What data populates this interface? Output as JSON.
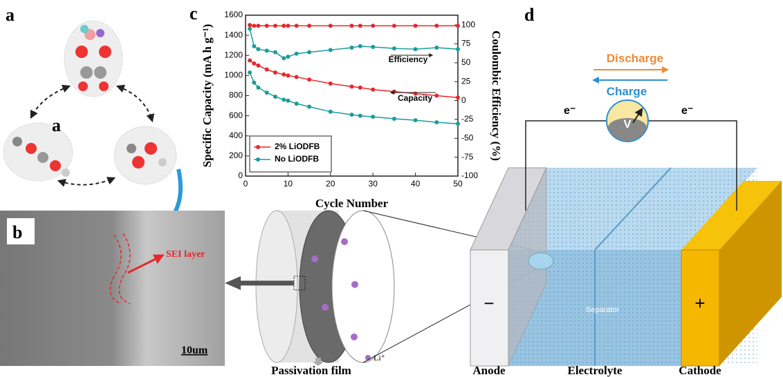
{
  "chart_data": {
    "type": "line",
    "panel_label": "c",
    "x_label": "Cycle Number",
    "y_label": "Specific Capacity (mA h g⁻¹)",
    "y2_label": "Coulombic Efficiency (%)",
    "x": [
      1,
      2,
      3,
      5,
      7,
      9,
      10,
      12,
      15,
      20,
      25,
      27,
      30,
      35,
      40,
      45,
      50
    ],
    "xlim": [
      0,
      50
    ],
    "xticks": [
      0,
      10,
      20,
      30,
      40,
      50
    ],
    "ylim": [
      0,
      1600
    ],
    "yticks": [
      0,
      200,
      400,
      600,
      800,
      1000,
      1200,
      1400,
      1600
    ],
    "y2lim": [
      -100,
      113
    ],
    "y2ticks": [
      -100,
      -75,
      -50,
      -25,
      0,
      25,
      50,
      75,
      100
    ],
    "series": [
      {
        "name": "2% LiODFB",
        "color": "#e8262c",
        "values": [
          1150,
          1120,
          1100,
          1060,
          1030,
          1010,
          1000,
          985,
          960,
          920,
          890,
          880,
          860,
          840,
          820,
          800,
          780
        ]
      },
      {
        "name": "No LiODFB",
        "color": "#1a9c9c",
        "values": [
          1030,
          930,
          880,
          830,
          790,
          760,
          750,
          720,
          690,
          640,
          610,
          600,
          590,
          570,
          555,
          535,
          520
        ]
      },
      {
        "color": "#e8262c",
        "axis": "y2",
        "values": [
          100,
          99,
          99,
          99,
          99,
          99,
          99,
          99,
          99,
          99,
          99,
          99,
          99,
          99,
          99,
          99,
          99
        ]
      },
      {
        "color": "#1a9c9c",
        "axis": "y2",
        "values": [
          95,
          72,
          68,
          66,
          64,
          56,
          58,
          62,
          64,
          67,
          70,
          72,
          71,
          69,
          68,
          70,
          68
        ]
      }
    ],
    "annotations": [
      "Efficiency",
      "Capacity"
    ],
    "legend_position": "lower left"
  },
  "panel_a": {
    "label": "a",
    "inner_label": "a"
  },
  "panel_b": {
    "label": "b",
    "annotation": "SEI layer",
    "scale_bar": "10um"
  },
  "panel_d": {
    "label": "d",
    "discharge": "Discharge",
    "charge": "Charge",
    "electron_left": "e⁻",
    "electron_right": "e⁻",
    "meter": "V",
    "separator": "Separator",
    "anode_sign": "−",
    "cathode_sign": "+",
    "ion": "Li⁺",
    "passivation": "Passivation film",
    "anode": "Anode",
    "electrolyte": "Electrolyte",
    "cathode": "Cathode"
  }
}
